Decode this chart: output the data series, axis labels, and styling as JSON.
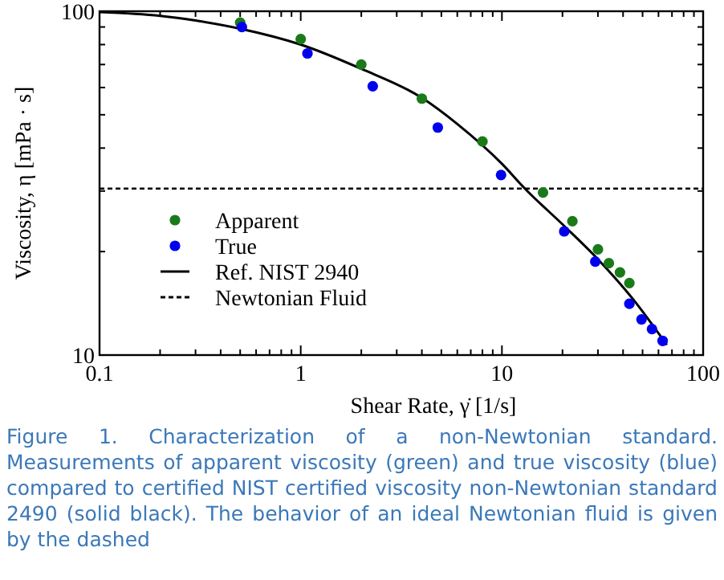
{
  "chart_data": {
    "type": "scatter",
    "xlabel": "Shear Rate, γ̇ [1/s]",
    "ylabel": "Viscosity, η [mPa · s]",
    "log": "xy",
    "grid": false,
    "legend": "left",
    "marker": "circle",
    "xlim": [
      0.1,
      100
    ],
    "ylim": [
      10,
      100
    ],
    "xticks": [
      0.1,
      {
        "value": 0.2,
        "label": null
      },
      {
        "value": 0.3,
        "label": null
      },
      {
        "value": 0.4,
        "label": null
      },
      {
        "value": 0.5,
        "label": null
      },
      {
        "value": 0.6,
        "label": null
      },
      {
        "value": 0.7,
        "label": null
      },
      {
        "value": 0.8,
        "label": null
      },
      {
        "value": 0.9,
        "label": null
      },
      1,
      {
        "value": 2,
        "label": null
      },
      {
        "value": 3,
        "label": null
      },
      {
        "value": 4,
        "label": null
      },
      {
        "value": 5,
        "label": null
      },
      {
        "value": 6,
        "label": null
      },
      {
        "value": 7,
        "label": null
      },
      {
        "value": 8,
        "label": null
      },
      {
        "value": 9,
        "label": null
      },
      10,
      {
        "value": 20,
        "label": null
      },
      {
        "value": 30,
        "label": null
      },
      {
        "value": 40,
        "label": null
      },
      {
        "value": 50,
        "label": null
      },
      {
        "value": 60,
        "label": null
      },
      {
        "value": 70,
        "label": null
      },
      {
        "value": 80,
        "label": null
      },
      {
        "value": 90,
        "label": null
      },
      100
    ],
    "yticks": [
      10,
      {
        "value": 20,
        "label": null
      },
      {
        "value": 30,
        "label": null
      },
      {
        "value": 40,
        "label": null
      },
      {
        "value": 50,
        "label": null
      },
      {
        "value": 60,
        "label": null
      },
      {
        "value": 70,
        "label": null
      },
      {
        "value": 80,
        "label": null
      },
      {
        "value": 90,
        "label": null
      },
      100
    ],
    "series": [
      {
        "name": "Apparent",
        "color": "#1a7a1a",
        "x": [
          0.5,
          1.0,
          2.0,
          4.0,
          8.0,
          16,
          22.4,
          30,
          34,
          38.6,
          43
        ],
        "values": [
          92.7,
          83,
          70,
          55.7,
          41.8,
          29.7,
          24.5,
          20.3,
          18.5,
          17.4,
          16.2
        ]
      },
      {
        "name": "True",
        "color": "#0000ee",
        "x": [
          0.51,
          1.08,
          2.28,
          4.8,
          9.9,
          20.4,
          29.1,
          43,
          49.4,
          55.7,
          62.9
        ],
        "values": [
          90,
          75.4,
          60.5,
          45.9,
          33.4,
          22.9,
          18.7,
          14.1,
          12.7,
          11.9,
          11.0
        ]
      },
      {
        "name": "Ref. NIST 2940",
        "type": "line",
        "marker": "none",
        "line_style": "solid",
        "color": "#000000",
        "x": [
          0.1,
          0.2,
          0.3,
          0.5,
          1,
          2,
          4,
          6,
          10,
          13,
          20,
          30,
          45,
          66
        ],
        "values": [
          99.5,
          97,
          94,
          89,
          80,
          68,
          56,
          47,
          36,
          30.5,
          24,
          19,
          14.5,
          10.7
        ]
      }
    ],
    "ref_lines": [
      {
        "axis": "y",
        "value": 30.5,
        "label": "Newtonian Fluid",
        "line_style": "dashed",
        "color": "#000000"
      }
    ],
    "annotations": [
      "Figure 1. Characterization of a non-Newtonian standard. Measurements of apparent viscosity (green) and true viscosity (blue) compared to certified NIST certified viscosity non-Newtonian standard 2490 (solid black). The behavior of an ideal Newtonian fluid is given by the dashed"
    ]
  }
}
